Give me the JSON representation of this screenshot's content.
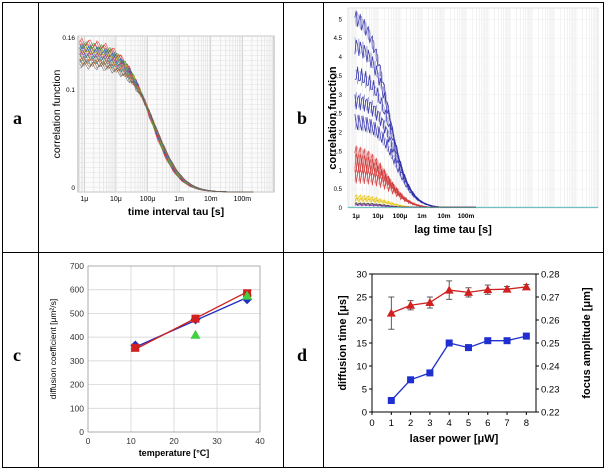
{
  "panels": {
    "a": {
      "label": "a"
    },
    "b": {
      "label": "b"
    },
    "c": {
      "label": "c"
    },
    "d": {
      "label": "d"
    }
  },
  "chart_data": [
    {
      "id": "a",
      "type": "line",
      "title": "",
      "xlabel": "time interval tau [s]",
      "ylabel": "correlation function",
      "xscale": "log",
      "x_tick_labels": [
        "1μ",
        "10μ",
        "100μ",
        "1m",
        "10m",
        "100m"
      ],
      "y_tick_labels": [
        "0.16",
        "0.1",
        "0"
      ],
      "xlim": [
        5e-07,
        0.5
      ],
      "ylim": [
        0,
        0.16
      ],
      "description_series": "many overlapping colored decay curves from ~0.155 at 1μs to 0 near 1ms",
      "series_colors": [
        "#e03030",
        "#30a030",
        "#3050d0",
        "#d0a000",
        "#a030a0",
        "#20a0a0",
        "#e07020",
        "#606060"
      ]
    },
    {
      "id": "b",
      "type": "line",
      "title": "",
      "xlabel": "lag time tau  [s]",
      "ylabel": "correlation function",
      "xscale": "log",
      "x_tick_labels": [
        "1μ",
        "10μ",
        "100μ",
        "1m",
        "10m",
        "100m"
      ],
      "y_tick_labels": [
        "0",
        "0.5",
        "1",
        "1.5",
        "2",
        "2.5",
        "3",
        "3.5",
        "4",
        "4.5",
        "5"
      ],
      "ylim": [
        0,
        5.3
      ],
      "series_groups": [
        {
          "name": "blue",
          "color": "#2a2aa8",
          "start_values": [
            5.2,
            4.4,
            3.6,
            2.9,
            2.3
          ]
        },
        {
          "name": "red",
          "color": "#d23a3a",
          "start_values": [
            1.5,
            1.3,
            1.1,
            0.9
          ]
        },
        {
          "name": "yellow",
          "color": "#e6c200",
          "start_values": [
            0.3,
            0.22
          ]
        },
        {
          "name": "black",
          "color": "#222222",
          "start_values": [
            0.12
          ]
        },
        {
          "name": "purple",
          "color": "#8a2aa8",
          "start_values": [
            0.08
          ]
        }
      ]
    },
    {
      "id": "c",
      "type": "scatter",
      "xlabel": "temperature [°C]",
      "ylabel": "diffusion coefficient [μm²/s]",
      "xlim": [
        0,
        40
      ],
      "ylim": [
        0,
        700
      ],
      "x_ticks": [
        0,
        10,
        20,
        30,
        40
      ],
      "y_ticks": [
        0,
        100,
        200,
        300,
        400,
        500,
        600,
        700
      ],
      "series": [
        {
          "name": "blue",
          "color": "#2030c0",
          "marker": "diamond",
          "x": [
            11,
            25,
            37
          ],
          "y": [
            365,
            475,
            560
          ]
        },
        {
          "name": "red",
          "color": "#d02020",
          "marker": "square",
          "x": [
            11,
            25,
            37
          ],
          "y": [
            355,
            478,
            585
          ]
        },
        {
          "name": "green",
          "color": "#40d040",
          "marker": "triangle",
          "x": [
            25,
            37
          ],
          "y": [
            410,
            575
          ]
        }
      ],
      "fit_lines": [
        {
          "color": "#2030c0",
          "x": [
            10,
            38
          ],
          "y": [
            350,
            575
          ]
        },
        {
          "color": "#d02020",
          "x": [
            10,
            38
          ],
          "y": [
            340,
            600
          ]
        }
      ]
    },
    {
      "id": "d",
      "type": "line",
      "xlabel": "laser power [μW]",
      "ylabel": "diffusion time [μs]",
      "y2label": "focus amplitude [μm]",
      "x": [
        1,
        2,
        3,
        4,
        5,
        6,
        7,
        8
      ],
      "xlim": [
        0,
        8.5
      ],
      "ylim": [
        0,
        30
      ],
      "y2lim": [
        0.22,
        0.28
      ],
      "x_ticks": [
        0,
        1,
        2,
        3,
        4,
        5,
        6,
        7,
        8
      ],
      "y_ticks": [
        0,
        5,
        10,
        15,
        20,
        25,
        30
      ],
      "y2_ticks": [
        "0.22",
        "0.23",
        "0.24",
        "0.25",
        "0.26",
        "0.27",
        "0.28"
      ],
      "series": [
        {
          "name": "diffusion time",
          "axis": "left",
          "color": "#d02020",
          "marker": "triangle",
          "values": [
            21.5,
            23.2,
            23.8,
            26.5,
            26.0,
            26.6,
            26.7,
            27.2
          ],
          "errors": [
            3.5,
            1.0,
            1.2,
            2.0,
            1.0,
            1.0,
            0.6,
            0.5
          ]
        },
        {
          "name": "focus amplitude",
          "axis": "right",
          "color": "#1f2fd0",
          "marker": "square",
          "values": [
            0.225,
            0.234,
            0.237,
            0.25,
            0.248,
            0.251,
            0.251,
            0.253
          ]
        }
      ]
    }
  ]
}
